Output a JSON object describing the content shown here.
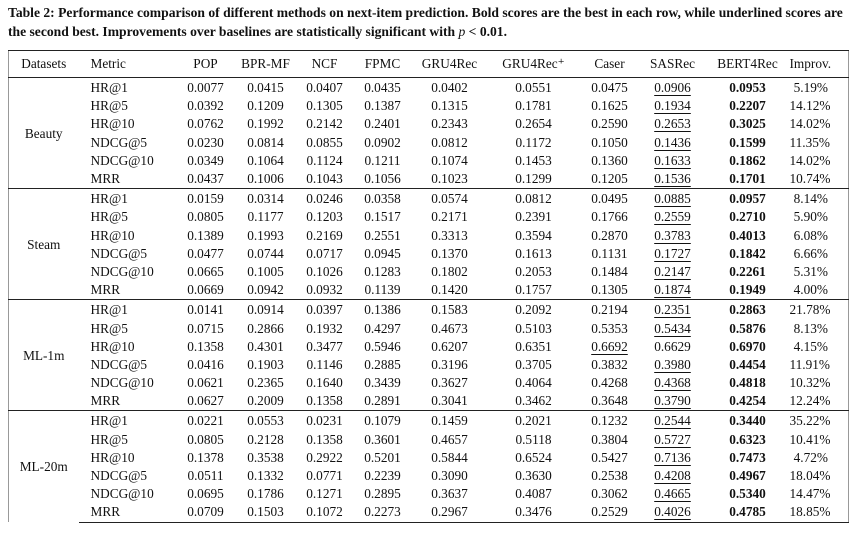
{
  "caption": {
    "text": "Table 2: Performance comparison of different methods on next-item prediction. Bold scores are the best in each row, while underlined scores are the second best. Improvements over baselines are statistically significant with ",
    "variable": "p",
    "condition": "< 0.01."
  },
  "table": {
    "headers": [
      "Datasets",
      "Metric",
      "POP",
      "BPR-MF",
      "NCF",
      "FPMC",
      "GRU4Rec",
      "GRU4Rec⁺",
      "Caser",
      "SASRec",
      "BERT4Rec",
      "Improv."
    ],
    "bold_column": "BERT4Rec",
    "underlined_column": "SASRec",
    "groups": [
      {
        "dataset": "Beauty",
        "rows": [
          {
            "metric": "HR@1",
            "scores": [
              "0.0077",
              "0.0415",
              "0.0407",
              "0.0435",
              "0.0402",
              "0.0551",
              "0.0475",
              "0.0906",
              "0.0953"
            ],
            "improv": "5.19%"
          },
          {
            "metric": "HR@5",
            "scores": [
              "0.0392",
              "0.1209",
              "0.1305",
              "0.1387",
              "0.1315",
              "0.1781",
              "0.1625",
              "0.1934",
              "0.2207"
            ],
            "improv": "14.12%"
          },
          {
            "metric": "HR@10",
            "scores": [
              "0.0762",
              "0.1992",
              "0.2142",
              "0.2401",
              "0.2343",
              "0.2654",
              "0.2590",
              "0.2653",
              "0.3025"
            ],
            "improv": "14.02%"
          },
          {
            "metric": "NDCG@5",
            "scores": [
              "0.0230",
              "0.0814",
              "0.0855",
              "0.0902",
              "0.0812",
              "0.1172",
              "0.1050",
              "0.1436",
              "0.1599"
            ],
            "improv": "11.35%"
          },
          {
            "metric": "NDCG@10",
            "scores": [
              "0.0349",
              "0.1064",
              "0.1124",
              "0.1211",
              "0.1074",
              "0.1453",
              "0.1360",
              "0.1633",
              "0.1862"
            ],
            "improv": "14.02%"
          },
          {
            "metric": "MRR",
            "scores": [
              "0.0437",
              "0.1006",
              "0.1043",
              "0.1056",
              "0.1023",
              "0.1299",
              "0.1205",
              "0.1536",
              "0.1701"
            ],
            "improv": "10.74%"
          }
        ]
      },
      {
        "dataset": "Steam",
        "rows": [
          {
            "metric": "HR@1",
            "scores": [
              "0.0159",
              "0.0314",
              "0.0246",
              "0.0358",
              "0.0574",
              "0.0812",
              "0.0495",
              "0.0885",
              "0.0957"
            ],
            "improv": "8.14%"
          },
          {
            "metric": "HR@5",
            "scores": [
              "0.0805",
              "0.1177",
              "0.1203",
              "0.1517",
              "0.2171",
              "0.2391",
              "0.1766",
              "0.2559",
              "0.2710"
            ],
            "improv": "5.90%"
          },
          {
            "metric": "HR@10",
            "scores": [
              "0.1389",
              "0.1993",
              "0.2169",
              "0.2551",
              "0.3313",
              "0.3594",
              "0.2870",
              "0.3783",
              "0.4013"
            ],
            "improv": "6.08%"
          },
          {
            "metric": "NDCG@5",
            "scores": [
              "0.0477",
              "0.0744",
              "0.0717",
              "0.0945",
              "0.1370",
              "0.1613",
              "0.1131",
              "0.1727",
              "0.1842"
            ],
            "improv": "6.66%"
          },
          {
            "metric": "NDCG@10",
            "scores": [
              "0.0665",
              "0.1005",
              "0.1026",
              "0.1283",
              "0.1802",
              "0.2053",
              "0.1484",
              "0.2147",
              "0.2261"
            ],
            "improv": "5.31%"
          },
          {
            "metric": "MRR",
            "scores": [
              "0.0669",
              "0.0942",
              "0.0932",
              "0.1139",
              "0.1420",
              "0.1757",
              "0.1305",
              "0.1874",
              "0.1949"
            ],
            "improv": "4.00%"
          }
        ]
      },
      {
        "dataset": "ML-1m",
        "rows": [
          {
            "metric": "HR@1",
            "scores": [
              "0.0141",
              "0.0914",
              "0.0397",
              "0.1386",
              "0.1583",
              "0.2092",
              "0.2194",
              "0.2351",
              "0.2863"
            ],
            "improv": "21.78%"
          },
          {
            "metric": "HR@5",
            "scores": [
              "0.0715",
              "0.2866",
              "0.1932",
              "0.4297",
              "0.4673",
              "0.5103",
              "0.5353",
              "0.5434",
              "0.5876"
            ],
            "improv": "8.13%"
          },
          {
            "metric": "HR@10",
            "scores": [
              "0.1358",
              "0.4301",
              "0.3477",
              "0.5946",
              "0.6207",
              "0.6351",
              "0.6692",
              "0.6629",
              "0.6970"
            ],
            "improv": "4.15%",
            "underlined_column": "Caser"
          },
          {
            "metric": "NDCG@5",
            "scores": [
              "0.0416",
              "0.1903",
              "0.1146",
              "0.2885",
              "0.3196",
              "0.3705",
              "0.3832",
              "0.3980",
              "0.4454"
            ],
            "improv": "11.91%"
          },
          {
            "metric": "NDCG@10",
            "scores": [
              "0.0621",
              "0.2365",
              "0.1640",
              "0.3439",
              "0.3627",
              "0.4064",
              "0.4268",
              "0.4368",
              "0.4818"
            ],
            "improv": "10.32%"
          },
          {
            "metric": "MRR",
            "scores": [
              "0.0627",
              "0.2009",
              "0.1358",
              "0.2891",
              "0.3041",
              "0.3462",
              "0.3648",
              "0.3790",
              "0.4254"
            ],
            "improv": "12.24%"
          }
        ]
      },
      {
        "dataset": "ML-20m",
        "rows": [
          {
            "metric": "HR@1",
            "scores": [
              "0.0221",
              "0.0553",
              "0.0231",
              "0.1079",
              "0.1459",
              "0.2021",
              "0.1232",
              "0.2544",
              "0.3440"
            ],
            "improv": "35.22%"
          },
          {
            "metric": "HR@5",
            "scores": [
              "0.0805",
              "0.2128",
              "0.1358",
              "0.3601",
              "0.4657",
              "0.5118",
              "0.3804",
              "0.5727",
              "0.6323"
            ],
            "improv": "10.41%"
          },
          {
            "metric": "HR@10",
            "scores": [
              "0.1378",
              "0.3538",
              "0.2922",
              "0.5201",
              "0.5844",
              "0.6524",
              "0.5427",
              "0.7136",
              "0.7473"
            ],
            "improv": "4.72%"
          },
          {
            "metric": "NDCG@5",
            "scores": [
              "0.0511",
              "0.1332",
              "0.0771",
              "0.2239",
              "0.3090",
              "0.3630",
              "0.2538",
              "0.4208",
              "0.4967"
            ],
            "improv": "18.04%"
          },
          {
            "metric": "NDCG@10",
            "scores": [
              "0.0695",
              "0.1786",
              "0.1271",
              "0.2895",
              "0.3637",
              "0.4087",
              "0.3062",
              "0.4665",
              "0.5340"
            ],
            "improv": "14.47%"
          },
          {
            "metric": "MRR",
            "scores": [
              "0.0709",
              "0.1503",
              "0.1072",
              "0.2273",
              "0.2967",
              "0.3476",
              "0.2529",
              "0.4026",
              "0.4785"
            ],
            "improv": "18.85%"
          }
        ]
      }
    ]
  }
}
